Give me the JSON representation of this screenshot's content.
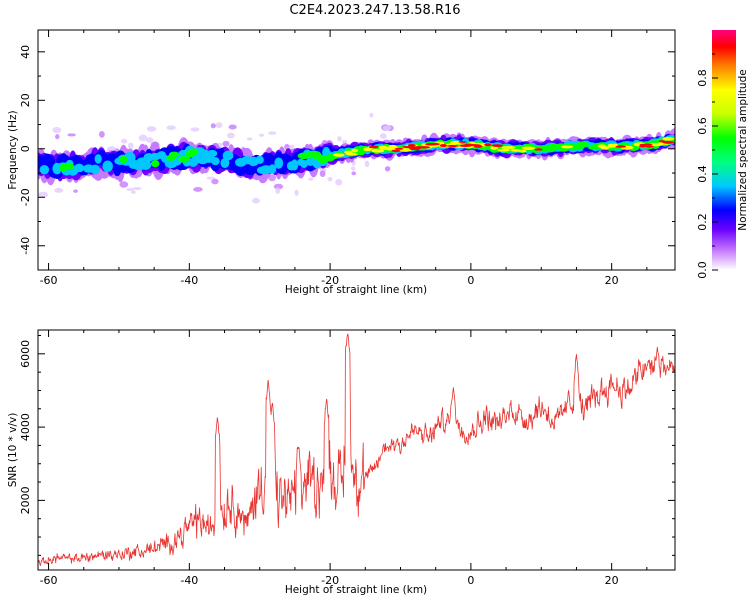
{
  "title": "C2E4.2023.247.13.58.R16",
  "chart_data": [
    {
      "type": "heatmap",
      "xlabel": "Height of straight line (km)",
      "ylabel": "Frequency (Hz)",
      "xlim": [
        -61.5,
        29
      ],
      "ylim": [
        -50,
        49
      ],
      "xticks": [
        -60,
        -40,
        -20,
        0,
        20
      ],
      "yticks": [
        -40,
        -20,
        0,
        20,
        40
      ],
      "colorbar": {
        "label": "Normalized spectral amplitude",
        "range": [
          0,
          1
        ],
        "ticks": [
          0.0,
          0.2,
          0.4,
          0.6,
          0.8
        ],
        "tick_labels": [
          "0.0",
          "0.2",
          "0.4",
          "0.6",
          "0.8"
        ]
      },
      "ridge": {
        "x": [
          -61,
          -58,
          -55,
          -52,
          -49,
          -46,
          -43,
          -40,
          -37,
          -34,
          -31,
          -28,
          -25,
          -22,
          -19,
          -16,
          -13,
          -10,
          -7,
          -4,
          -1,
          2,
          5,
          8,
          11,
          14,
          17,
          20,
          23,
          26,
          29
        ],
        "freq": [
          -7,
          -7,
          -6,
          -6,
          -6,
          -5,
          -4,
          -3,
          -4,
          -5,
          -7,
          -6,
          -5,
          -4,
          -2,
          -1,
          0,
          0,
          1,
          2,
          2,
          1,
          0,
          0,
          0,
          1,
          1,
          1,
          1,
          2,
          4
        ],
        "amplitude": [
          0.45,
          0.5,
          0.4,
          0.42,
          0.45,
          0.4,
          0.5,
          0.55,
          0.45,
          0.4,
          0.35,
          0.42,
          0.45,
          0.55,
          0.7,
          0.8,
          0.85,
          0.9,
          0.85,
          0.9,
          0.9,
          0.85,
          0.8,
          0.8,
          0.75,
          0.7,
          0.7,
          0.75,
          0.8,
          0.85,
          0.9
        ]
      }
    },
    {
      "type": "line",
      "xlabel": "Height of straight line (km)",
      "ylabel": "SNR (10 * v/v)",
      "xlim": [
        -61.5,
        29
      ],
      "ylim": [
        100,
        6650
      ],
      "xticks": [
        -60,
        -40,
        -20,
        0,
        20
      ],
      "yticks": [
        2000,
        4000,
        6000
      ],
      "color": "#e8332f",
      "x": [
        -61,
        -59,
        -57,
        -55,
        -53,
        -51,
        -49,
        -47,
        -45,
        -43,
        -41,
        -39,
        -37,
        -35,
        -34,
        -32,
        -30,
        -29,
        -28,
        -27,
        -25,
        -23,
        -21,
        -20,
        -19,
        -17.5,
        -16,
        -14,
        -12,
        -10,
        -8,
        -6,
        -4,
        -2,
        0,
        2,
        4,
        6,
        8,
        10,
        12,
        14,
        16,
        18,
        20,
        22,
        24,
        26,
        29
      ],
      "y": [
        300,
        450,
        380,
        450,
        500,
        520,
        560,
        600,
        700,
        800,
        1100,
        1500,
        1200,
        1800,
        2000,
        1300,
        2400,
        3200,
        2200,
        2000,
        2100,
        2600,
        2500,
        3000,
        2300,
        3400,
        2400,
        2800,
        3500,
        3600,
        3900,
        3700,
        4200,
        4000,
        3900,
        4300,
        4100,
        4500,
        4200,
        4600,
        4100,
        4700,
        4500,
        4900,
        5200,
        4950,
        5500,
        5700,
        5600
      ],
      "spikes": [
        {
          "x": -36,
          "y": 4300
        },
        {
          "x": -28.8,
          "y": 5300
        },
        {
          "x": -28.2,
          "y": 4700
        },
        {
          "x": -24.5,
          "y": 3500
        },
        {
          "x": -20.5,
          "y": 4800
        },
        {
          "x": -17.5,
          "y": 6600
        },
        {
          "x": -2.5,
          "y": 5100
        },
        {
          "x": 15,
          "y": 6000
        },
        {
          "x": 26.5,
          "y": 6200
        }
      ]
    }
  ]
}
